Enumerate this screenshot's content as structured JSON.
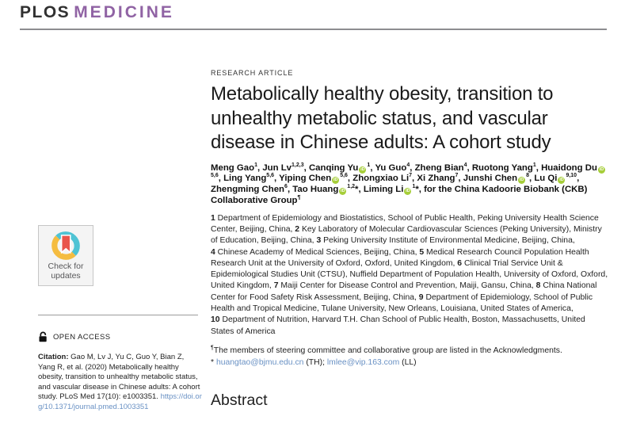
{
  "colors": {
    "brand_purple": "#9063A4",
    "link_blue": "#6991C4",
    "orcid_green": "#A6CE39",
    "crossmark_teal": "#4FC3D4",
    "crossmark_yellow": "#F5BC40",
    "crossmark_red": "#E9544B"
  },
  "header": {
    "brand_plos": "PLOS",
    "brand_journal": "MEDICINE"
  },
  "sidebar": {
    "check_updates_line1": "Check for",
    "check_updates_line2": "updates",
    "open_access_label": "OPEN ACCESS",
    "citation_label": "Citation:",
    "citation_text": "Gao M, Lv J, Yu C, Guo Y, Bian Z, Yang R, et al. (2020) Metabolically healthy obesity, transition to unhealthy metabolic status, and vascular disease in Chinese adults: A cohort study. PLoS Med 17(10): e1003351.",
    "citation_doi": "https://doi.org/10.1371/journal.pmed.1003351"
  },
  "article": {
    "kicker": "RESEARCH ARTICLE",
    "title": "Metabolically healthy obesity, transition to unhealthy metabolic status, and vascular disease in Chinese adults: A cohort study",
    "orcid_label": "iD",
    "authors": [
      {
        "name": "Meng Gao",
        "sup": "1",
        "orcid": false,
        "star": false
      },
      {
        "name": "Jun Lv",
        "sup": "1,2,3",
        "orcid": false,
        "star": false
      },
      {
        "name": "Canqing Yu",
        "sup": "1",
        "orcid": true,
        "star": false
      },
      {
        "name": "Yu Guo",
        "sup": "4",
        "orcid": false,
        "star": false
      },
      {
        "name": "Zheng Bian",
        "sup": "4",
        "orcid": false,
        "star": false
      },
      {
        "name": "Ruotong Yang",
        "sup": "1",
        "orcid": false,
        "star": false
      },
      {
        "name": "Huaidong Du",
        "sup": "5,6",
        "orcid": true,
        "star": false
      },
      {
        "name": "Ling Yang",
        "sup": "5,6",
        "orcid": false,
        "star": false
      },
      {
        "name": "Yiping Chen",
        "sup": "5,6",
        "orcid": true,
        "star": false
      },
      {
        "name": "Zhongxiao Li",
        "sup": "7",
        "orcid": false,
        "star": false
      },
      {
        "name": "Xi Zhang",
        "sup": "7",
        "orcid": false,
        "star": false
      },
      {
        "name": "Junshi Chen",
        "sup": "8",
        "orcid": true,
        "star": false
      },
      {
        "name": "Lu Qi",
        "sup": "9,10",
        "orcid": true,
        "star": false
      },
      {
        "name": "Zhengming Chen",
        "sup": "6",
        "orcid": false,
        "star": false
      },
      {
        "name": "Tao Huang",
        "sup": "1,2",
        "orcid": true,
        "star": true
      },
      {
        "name": "Liming Li",
        "sup": "1",
        "orcid": true,
        "star": true
      }
    ],
    "authors_suffix": "for the China Kadoorie Biobank (CKB) Collaborative Group",
    "authors_suffix_marker": "¶",
    "affiliations": [
      {
        "num": "1",
        "text": "Department of Epidemiology and Biostatistics, School of Public Health, Peking University Health Science Center, Beijing, China"
      },
      {
        "num": "2",
        "text": "Key Laboratory of Molecular Cardiovascular Sciences (Peking University), Ministry of Education, Beijing, China"
      },
      {
        "num": "3",
        "text": "Peking University Institute of Environmental Medicine, Beijing, China"
      },
      {
        "num": "4",
        "text": "Chinese Academy of Medical Sciences, Beijing, China"
      },
      {
        "num": "5",
        "text": "Medical Research Council Population Health Research Unit at the University of Oxford, Oxford, United Kingdom"
      },
      {
        "num": "6",
        "text": "Clinical Trial Service Unit & Epidemiological Studies Unit (CTSU), Nuffield Department of Population Health, University of Oxford, Oxford, United Kingdom"
      },
      {
        "num": "7",
        "text": "Maiji Center for Disease Control and Prevention, Maiji, Gansu, China"
      },
      {
        "num": "8",
        "text": "China National Center for Food Safety Risk Assessment, Beijing, China"
      },
      {
        "num": "9",
        "text": "Department of Epidemiology, School of Public Health and Tropical Medicine, Tulane University, New Orleans, Louisiana, United States of America"
      },
      {
        "num": "10",
        "text": "Department of Nutrition, Harvard T.H. Chan School of Public Health, Boston, Massachusetts, United States of America"
      }
    ],
    "footnote_marker": "¶",
    "footnote_group": "The members of steering committee and collaborative group are listed in the Acknowledgments.",
    "correspondence": {
      "prefix": "*",
      "email1": "huangtao@bjmu.edu.cn",
      "label1": "(TH);",
      "email2": "lmlee@vip.163.com",
      "label2": "(LL)"
    },
    "abstract_heading": "Abstract"
  }
}
